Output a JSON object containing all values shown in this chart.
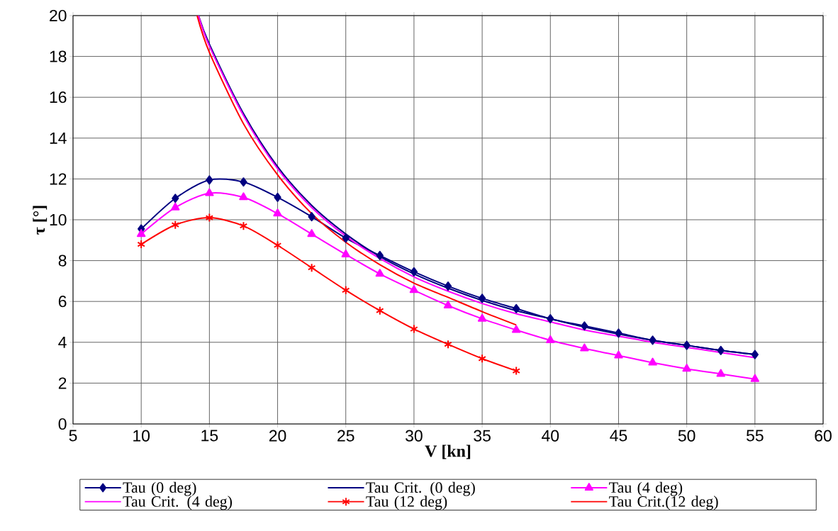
{
  "chart_data": {
    "type": "line",
    "xlabel": "V [kn]",
    "ylabel": "τ [°]",
    "xlim": [
      5,
      60
    ],
    "ylim": [
      0,
      20
    ],
    "xticks": [
      5,
      10,
      15,
      20,
      25,
      30,
      35,
      40,
      45,
      50,
      55,
      60
    ],
    "yticks": [
      0,
      2,
      4,
      6,
      8,
      10,
      12,
      14,
      16,
      18,
      20
    ],
    "grid": true,
    "legend": "bottom",
    "series": [
      {
        "name": "Tau (0 deg)",
        "color": "#000080",
        "marker": "diamond",
        "x": [
          10,
          12.5,
          15,
          17.5,
          20,
          22.5,
          25,
          27.5,
          30,
          32.5,
          35,
          37.5,
          40,
          42.5,
          45,
          47.5,
          50,
          52.5,
          55
        ],
        "values": [
          9.55,
          11.05,
          11.95,
          11.85,
          11.1,
          10.15,
          9.1,
          8.25,
          7.45,
          6.75,
          6.15,
          5.65,
          5.15,
          4.8,
          4.45,
          4.1,
          3.85,
          3.6,
          3.4
        ]
      },
      {
        "name": "Tau Crit. (0 deg)",
        "color": "#000080",
        "marker": "none",
        "x": [
          14.2,
          15,
          17.5,
          20,
          22.5,
          25,
          27.5,
          30,
          32.5,
          35,
          37.5,
          40,
          42.5,
          45,
          47.5,
          50,
          52.5,
          55
        ],
        "values": [
          20,
          18.6,
          15.2,
          12.6,
          10.7,
          9.3,
          8.2,
          7.35,
          6.65,
          6.05,
          5.55,
          5.15,
          4.75,
          4.4,
          4.1,
          3.85,
          3.6,
          3.4
        ]
      },
      {
        "name": "Tau (4 deg)",
        "color": "#ff00ff",
        "marker": "triangle",
        "x": [
          10,
          12.5,
          15,
          17.5,
          20,
          22.5,
          25,
          27.5,
          30,
          32.5,
          35,
          37.5,
          40,
          42.5,
          45,
          47.5,
          50,
          52.5,
          55
        ],
        "values": [
          9.3,
          10.6,
          11.3,
          11.1,
          10.3,
          9.3,
          8.3,
          7.35,
          6.55,
          5.8,
          5.15,
          4.6,
          4.1,
          3.7,
          3.35,
          3.0,
          2.7,
          2.45,
          2.2
        ]
      },
      {
        "name": "Tau Crit. (4 deg)",
        "color": "#ff00ff",
        "marker": "none",
        "x": [
          14.2,
          15,
          17.5,
          20,
          22.5,
          25,
          27.5,
          30,
          32.5,
          35,
          37.5,
          40,
          42.5,
          45,
          47.5,
          50,
          52.5,
          55
        ],
        "values": [
          20,
          18.5,
          15.1,
          12.5,
          10.6,
          9.2,
          8.1,
          7.2,
          6.5,
          5.9,
          5.4,
          5.0,
          4.6,
          4.3,
          4.0,
          3.75,
          3.5,
          3.25
        ]
      },
      {
        "name": "Tau (12 deg)",
        "color": "#ff0000",
        "marker": "cross",
        "x": [
          10,
          12.5,
          15,
          17.5,
          20,
          22.5,
          25,
          27.5,
          30,
          32.5,
          35,
          37.5
        ],
        "values": [
          8.8,
          9.75,
          10.1,
          9.7,
          8.75,
          7.65,
          6.55,
          5.55,
          4.65,
          3.9,
          3.2,
          2.6
        ]
      },
      {
        "name": "Tau Crit.(12 deg)",
        "color": "#ff0000",
        "marker": "none",
        "x": [
          14.1,
          15,
          17.5,
          20,
          22.5,
          25,
          27.5,
          30,
          32.5,
          35,
          37.5
        ],
        "values": [
          20,
          18.2,
          14.7,
          12.2,
          10.3,
          8.9,
          7.8,
          6.9,
          6.2,
          5.5,
          4.85
        ]
      }
    ]
  }
}
